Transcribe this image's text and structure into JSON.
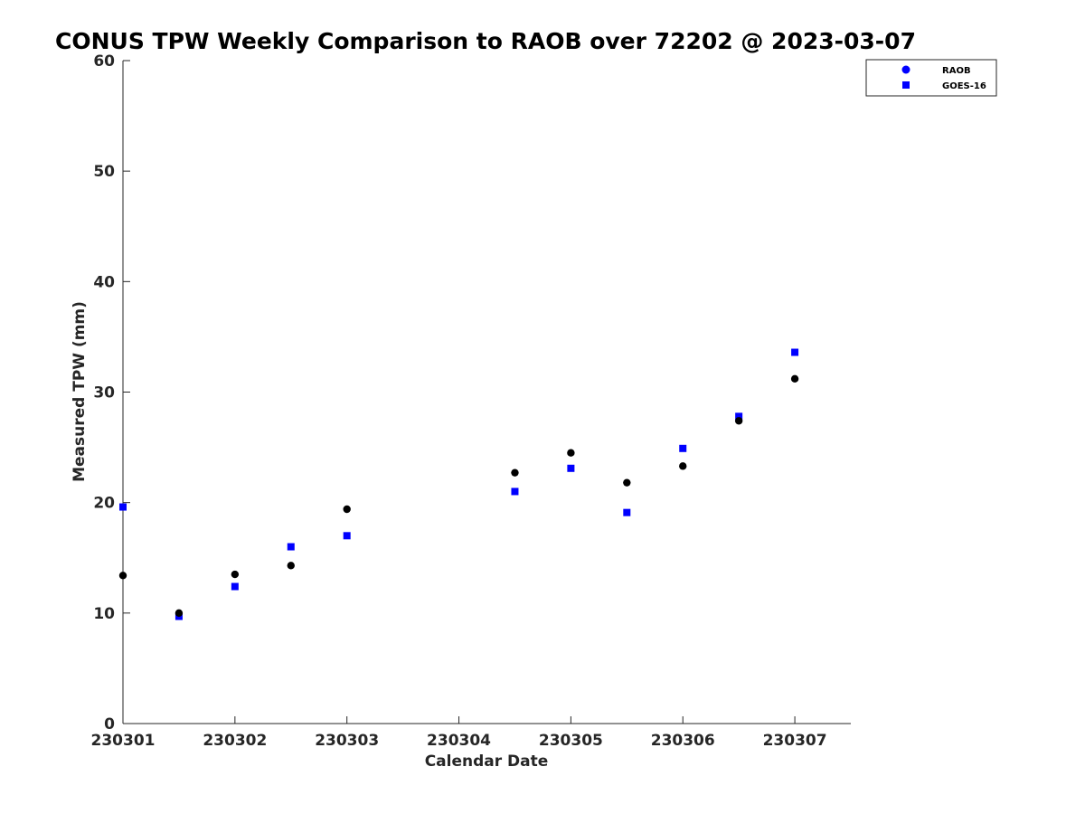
{
  "chart_data": {
    "type": "scatter",
    "title": "CONUS TPW Weekly Comparison to RAOB over 72202 @ 2023-03-07",
    "xlabel": "Calendar Date",
    "ylabel": "Measured TPW (mm)",
    "xlim": [
      230301,
      230307.5
    ],
    "ylim": [
      0,
      60
    ],
    "x_ticks": [
      "230301",
      "230302",
      "230303",
      "230304",
      "230305",
      "230306",
      "230307"
    ],
    "y_ticks": [
      "0",
      "10",
      "20",
      "30",
      "40",
      "50",
      "60"
    ],
    "grid": false,
    "legend_position": "top-right",
    "series": [
      {
        "name": "RAOB",
        "marker": "circle",
        "color": "#000000",
        "points": [
          [
            230301.0,
            13.4
          ],
          [
            230301.5,
            10.0
          ],
          [
            230302.0,
            13.5
          ],
          [
            230302.5,
            14.3
          ],
          [
            230303.0,
            19.4
          ],
          [
            230304.5,
            22.7
          ],
          [
            230305.0,
            24.5
          ],
          [
            230305.5,
            21.8
          ],
          [
            230306.0,
            23.3
          ],
          [
            230306.5,
            27.4
          ],
          [
            230307.0,
            31.2
          ]
        ]
      },
      {
        "name": "GOES-16",
        "marker": "square",
        "color": "#0000ff",
        "points": [
          [
            230301.0,
            19.6
          ],
          [
            230301.5,
            9.7
          ],
          [
            230302.0,
            12.4
          ],
          [
            230302.5,
            16.0
          ],
          [
            230303.0,
            17.0
          ],
          [
            230304.5,
            21.0
          ],
          [
            230305.0,
            23.1
          ],
          [
            230305.5,
            19.1
          ],
          [
            230306.0,
            24.9
          ],
          [
            230306.5,
            27.8
          ],
          [
            230307.0,
            33.6
          ]
        ]
      }
    ]
  }
}
